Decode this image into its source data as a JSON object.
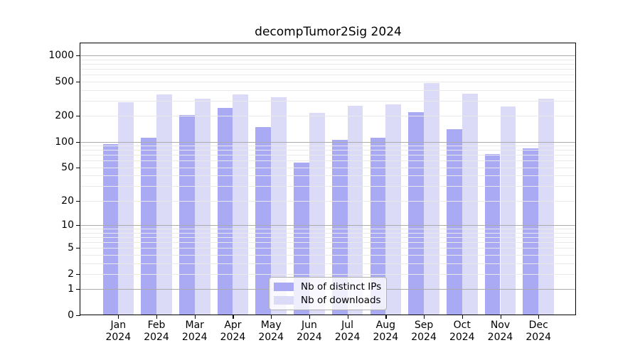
{
  "title": "decompTumor2Sig 2024",
  "chart_data": {
    "type": "bar",
    "title": "decompTumor2Sig 2024",
    "categories": [
      "Jan 2024",
      "Feb 2024",
      "Mar 2024",
      "Apr 2024",
      "May 2024",
      "Jun 2024",
      "Jul 2024",
      "Aug 2024",
      "Sep 2024",
      "Oct 2024",
      "Nov 2024",
      "Dec 2024"
    ],
    "series": [
      {
        "name": "Nb of distinct IPs",
        "color": "#a9a9f4",
        "values": [
          93,
          112,
          205,
          246,
          149,
          57,
          106,
          112,
          220,
          140,
          72,
          83
        ]
      },
      {
        "name": "Nb of downloads",
        "color": "#dbdbf8",
        "values": [
          290,
          356,
          317,
          358,
          332,
          217,
          263,
          273,
          482,
          362,
          256,
          316
        ]
      }
    ],
    "yscale": "log10(1+v)",
    "yticks": [
      0,
      1,
      2,
      5,
      10,
      20,
      50,
      100,
      200,
      500,
      1000
    ],
    "ylim": [
      0,
      1386
    ],
    "xlabel": "",
    "ylabel": "",
    "grid": "on",
    "legend_position": "inside-bottom-center"
  },
  "colors": {
    "background": "#ffffff",
    "axis": "#000000",
    "grid_major": "#ababab",
    "grid_minor": "#e9e9e9",
    "bar_distinct_ips": "#a9a9f4",
    "bar_downloads": "#dbdbf8",
    "legend_border": "#b0b0b0"
  }
}
